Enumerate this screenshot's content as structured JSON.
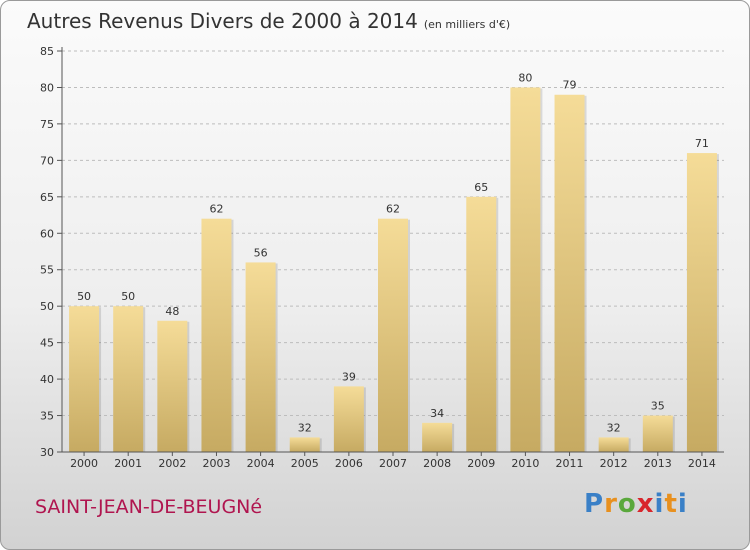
{
  "title": "Autres Revenus Divers de 2000 à 2014",
  "unit_note": "(en milliers d'€)",
  "commune": "SAINT-JEAN-DE-BEUGNé",
  "logo": {
    "text": "Proxiti",
    "parts": [
      "P",
      "r",
      "o",
      "x",
      "i",
      "t",
      "i"
    ]
  },
  "colors": {
    "bar_light": "#f5dc98",
    "bar_dark": "#c6aa62",
    "commune": "#b0154f",
    "grid": "#bdbdbd"
  },
  "chart_data": {
    "type": "bar",
    "title": "Autres Revenus Divers de 2000 à 2014",
    "xlabel": "",
    "ylabel": "",
    "categories": [
      "2000",
      "2001",
      "2002",
      "2003",
      "2004",
      "2005",
      "2006",
      "2007",
      "2008",
      "2009",
      "2010",
      "2011",
      "2012",
      "2013",
      "2014"
    ],
    "values": [
      50,
      50,
      48,
      62,
      56,
      32,
      39,
      62,
      34,
      65,
      80,
      79,
      32,
      35,
      71
    ],
    "ylim": [
      30,
      85
    ],
    "yticks": [
      30,
      35,
      40,
      45,
      50,
      55,
      60,
      65,
      70,
      75,
      80,
      85
    ],
    "grid": true,
    "data_labels": true
  }
}
